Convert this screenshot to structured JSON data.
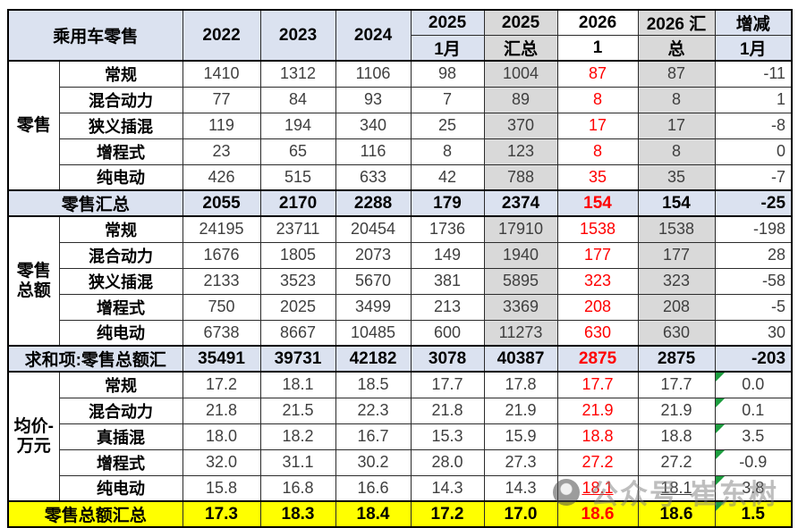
{
  "header": {
    "title": "乘用车零售",
    "cols": [
      {
        "l1": "2022",
        "l2": ""
      },
      {
        "l1": "2023",
        "l2": ""
      },
      {
        "l1": "2024",
        "l2": ""
      },
      {
        "l1": "2025",
        "l2": "1月"
      },
      {
        "l1": "2025",
        "l2": "汇总"
      },
      {
        "l1": "2026",
        "l2": "1"
      },
      {
        "l1": "2026 汇",
        "l2": "总"
      },
      {
        "l1": "增减",
        "l2": "1月"
      }
    ]
  },
  "colors": {
    "header_bg": "#dbe2f0",
    "shaded_column_bg": "#d9d9d9",
    "summary_row_bg": "#dbe2f0",
    "total_row_bg": "#ffff00",
    "highlight_text": "#ff0000",
    "data_text": "#3f3f3f",
    "triangle_green": "#1e9e40"
  },
  "chart_data": {
    "type": "table",
    "title": "乘用车零售",
    "columns": [
      "2022",
      "2023",
      "2024",
      "2025 1月",
      "2025 汇总",
      "2026 1",
      "2026 汇总",
      "增减 1月"
    ],
    "red_column": "2026 1",
    "shaded_columns": [
      "2025 汇总",
      "2026 汇总"
    ],
    "sections": [
      {
        "name": "零售",
        "shaded": true,
        "rows": [
          {
            "label": "常规",
            "values": [
              "1410",
              "1312",
              "1106",
              "98",
              "1004",
              "87",
              "87",
              "-11"
            ]
          },
          {
            "label": "混合动力",
            "values": [
              "77",
              "84",
              "93",
              "7",
              "89",
              "8",
              "8",
              "1"
            ]
          },
          {
            "label": "狭义插混",
            "values": [
              "119",
              "194",
              "340",
              "25",
              "370",
              "17",
              "17",
              "-8"
            ]
          },
          {
            "label": "增程式",
            "values": [
              "23",
              "65",
              "116",
              "8",
              "123",
              "8",
              "8",
              "0"
            ]
          },
          {
            "label": "纯电动",
            "values": [
              "426",
              "515",
              "633",
              "42",
              "788",
              "35",
              "35",
              "-7"
            ]
          }
        ],
        "summary": {
          "label": "零售汇总",
          "style": "blue",
          "values": [
            "2055",
            "2170",
            "2288",
            "179",
            "2374",
            "154",
            "154",
            "-25"
          ]
        }
      },
      {
        "name": "零售\n总额",
        "shaded": true,
        "rows": [
          {
            "label": "常规",
            "values": [
              "24195",
              "23711",
              "20454",
              "1736",
              "17910",
              "1538",
              "1538",
              "-198"
            ]
          },
          {
            "label": "混合动力",
            "values": [
              "1676",
              "1805",
              "2073",
              "149",
              "1940",
              "177",
              "177",
              "28"
            ]
          },
          {
            "label": "狭义插混",
            "values": [
              "2133",
              "3523",
              "5670",
              "381",
              "5895",
              "323",
              "323",
              "-58"
            ]
          },
          {
            "label": "增程式",
            "values": [
              "750",
              "2025",
              "3499",
              "213",
              "3369",
              "208",
              "208",
              "-5"
            ]
          },
          {
            "label": "纯电动",
            "values": [
              "6738",
              "8667",
              "10485",
              "600",
              "11273",
              "630",
              "630",
              "30"
            ]
          }
        ],
        "summary": {
          "label": "求和项:零售总额汇",
          "style": "blue",
          "values": [
            "35491",
            "39731",
            "42182",
            "3078",
            "40387",
            "2875",
            "2875",
            "-203"
          ]
        }
      },
      {
        "name": "均价-\n万元",
        "shaded": false,
        "triangles": true,
        "rows": [
          {
            "label": "常规",
            "values": [
              "17.2",
              "18.1",
              "18.5",
              "17.7",
              "17.8",
              "17.7",
              "17.7",
              "0.0"
            ]
          },
          {
            "label": "混合动力",
            "values": [
              "21.8",
              "21.5",
              "22.3",
              "21.8",
              "21.9",
              "21.9",
              "21.9",
              "0.1"
            ]
          },
          {
            "label": "真插混",
            "values": [
              "18.0",
              "18.2",
              "16.7",
              "15.3",
              "15.9",
              "18.8",
              "18.8",
              "3.5"
            ]
          },
          {
            "label": "增程式",
            "values": [
              "32.0",
              "31.1",
              "30.2",
              "28.0",
              "27.3",
              "27.2",
              "27.2",
              "-0.9"
            ]
          },
          {
            "label": "纯电动",
            "values": [
              "15.8",
              "16.8",
              "16.6",
              "14.3",
              "14.3",
              "18.1",
              "18.1",
              "3.8"
            ],
            "underline_cols": [
              5,
              6
            ]
          }
        ],
        "summary": {
          "label": "零售总额汇总",
          "style": "yellow",
          "values": [
            "17.3",
            "18.3",
            "18.4",
            "17.2",
            "17.0",
            "18.6",
            "18.6",
            "1.5"
          ],
          "triangle": true
        }
      }
    ]
  },
  "watermark": {
    "icon": "camera-logo-icon",
    "text1": "公众号",
    "text2": "崔东树"
  }
}
